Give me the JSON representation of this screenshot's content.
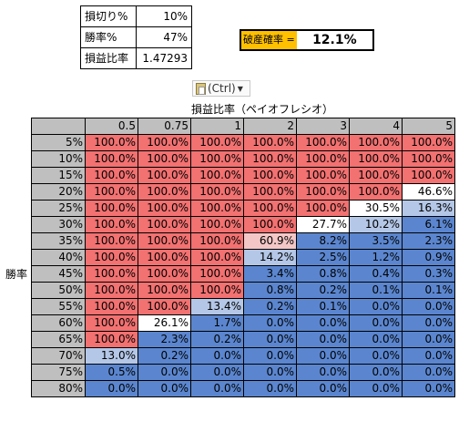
{
  "params": [
    {
      "label": "損切り%",
      "value": "10%"
    },
    {
      "label": "勝率%",
      "value": "47%"
    },
    {
      "label": "損益比率",
      "value": "1.47293"
    }
  ],
  "ruin": {
    "label": "破産確率 =",
    "value": "12.1%"
  },
  "paste_button": {
    "label": "(Ctrl)",
    "icon": "clipboard-icon",
    "arrow_icon": "dropdown-arrow-icon"
  },
  "axis_title": "損益比率（ペイオフレシオ）",
  "row_axis_label": "勝率",
  "colors": {
    "red": "#f27171",
    "pink": "#f4c7c7",
    "light_blue": "#b4c7e7",
    "blue": "#5b86cf",
    "header_gray": "#bfbfbf",
    "ruin_label_bg": "#ffc000"
  },
  "columns": [
    "0.5",
    "0.75",
    "1",
    "2",
    "3",
    "4",
    "5"
  ],
  "rows": [
    {
      "label": "5%",
      "cells": [
        "100.0%",
        "100.0%",
        "100.0%",
        "100.0%",
        "100.0%",
        "100.0%",
        "100.0%"
      ]
    },
    {
      "label": "10%",
      "cells": [
        "100.0%",
        "100.0%",
        "100.0%",
        "100.0%",
        "100.0%",
        "100.0%",
        "100.0%"
      ]
    },
    {
      "label": "15%",
      "cells": [
        "100.0%",
        "100.0%",
        "100.0%",
        "100.0%",
        "100.0%",
        "100.0%",
        "100.0%"
      ]
    },
    {
      "label": "20%",
      "cells": [
        "100.0%",
        "100.0%",
        "100.0%",
        "100.0%",
        "100.0%",
        "100.0%",
        "46.6%"
      ]
    },
    {
      "label": "25%",
      "cells": [
        "100.0%",
        "100.0%",
        "100.0%",
        "100.0%",
        "100.0%",
        "30.5%",
        "16.3%"
      ]
    },
    {
      "label": "30%",
      "cells": [
        "100.0%",
        "100.0%",
        "100.0%",
        "100.0%",
        "27.7%",
        "10.2%",
        "6.1%"
      ]
    },
    {
      "label": "35%",
      "cells": [
        "100.0%",
        "100.0%",
        "100.0%",
        "60.9%",
        "8.2%",
        "3.5%",
        "2.3%"
      ]
    },
    {
      "label": "40%",
      "cells": [
        "100.0%",
        "100.0%",
        "100.0%",
        "14.2%",
        "2.5%",
        "1.2%",
        "0.9%"
      ]
    },
    {
      "label": "45%",
      "cells": [
        "100.0%",
        "100.0%",
        "100.0%",
        "3.4%",
        "0.8%",
        "0.4%",
        "0.3%"
      ]
    },
    {
      "label": "50%",
      "cells": [
        "100.0%",
        "100.0%",
        "100.0%",
        "0.8%",
        "0.2%",
        "0.1%",
        "0.1%"
      ]
    },
    {
      "label": "55%",
      "cells": [
        "100.0%",
        "100.0%",
        "13.4%",
        "0.2%",
        "0.1%",
        "0.0%",
        "0.0%"
      ]
    },
    {
      "label": "60%",
      "cells": [
        "100.0%",
        "26.1%",
        "1.7%",
        "0.0%",
        "0.0%",
        "0.0%",
        "0.0%"
      ]
    },
    {
      "label": "65%",
      "cells": [
        "100.0%",
        "2.3%",
        "0.2%",
        "0.0%",
        "0.0%",
        "0.0%",
        "0.0%"
      ]
    },
    {
      "label": "70%",
      "cells": [
        "13.0%",
        "0.2%",
        "0.0%",
        "0.0%",
        "0.0%",
        "0.0%",
        "0.0%"
      ]
    },
    {
      "label": "75%",
      "cells": [
        "0.5%",
        "0.0%",
        "0.0%",
        "0.0%",
        "0.0%",
        "0.0%",
        "0.0%"
      ]
    },
    {
      "label": "80%",
      "cells": [
        "0.0%",
        "0.0%",
        "0.0%",
        "0.0%",
        "0.0%",
        "0.0%",
        "0.0%"
      ]
    }
  ]
}
